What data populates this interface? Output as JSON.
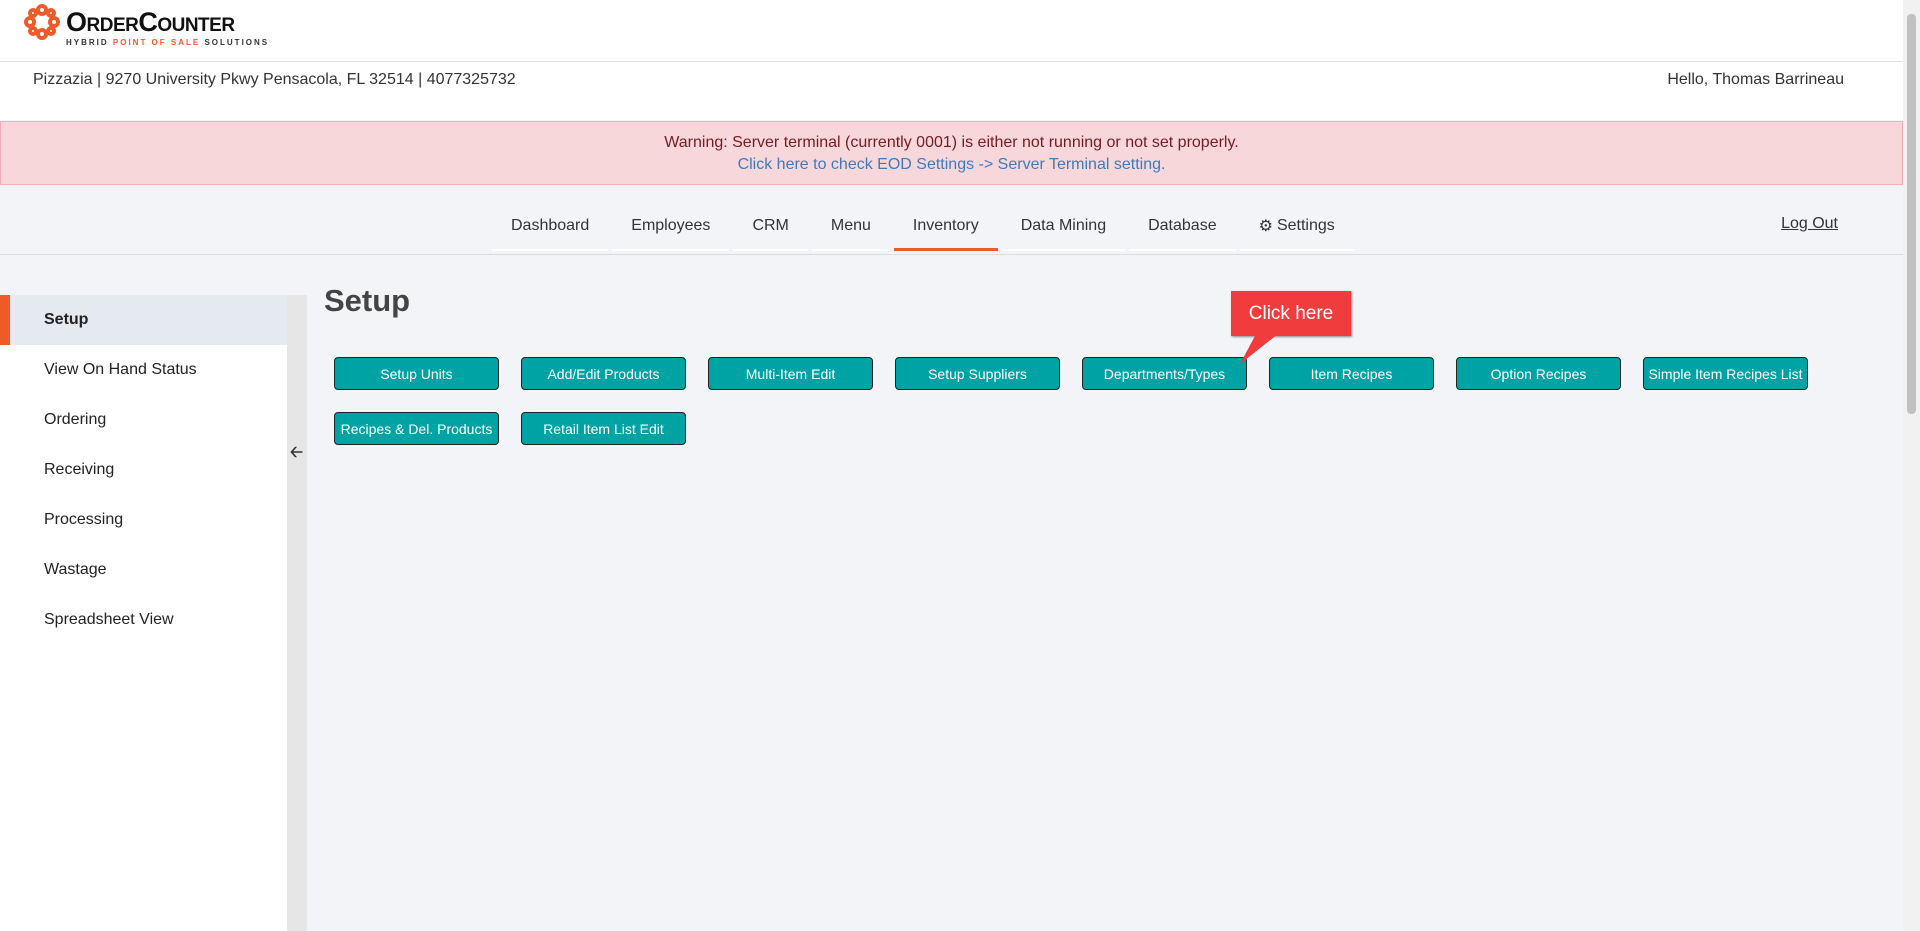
{
  "brand": {
    "name": "OrderCounter",
    "tagline_a": "HYBRID ",
    "tagline_b": "POINT OF SALE",
    "tagline_c": " SOLUTIONS",
    "accent": "#f05a28"
  },
  "header": {
    "store_info": "Pizzazia | 9270 University Pkwy Pensacola, FL 32514 | 4077325732",
    "greeting": "Hello, Thomas Barrineau"
  },
  "warning": {
    "text": "Warning: Server terminal (currently 0001) is either not running or not set properly.",
    "link": "Click here to check EOD Settings -> Server Terminal setting."
  },
  "nav": {
    "tabs": [
      {
        "label": "Dashboard"
      },
      {
        "label": "Employees"
      },
      {
        "label": "CRM"
      },
      {
        "label": "Menu"
      },
      {
        "label": "Inventory",
        "active": true
      },
      {
        "label": "Data Mining"
      },
      {
        "label": "Database"
      },
      {
        "label": "Settings",
        "icon": "gear-icon"
      }
    ],
    "logout": "Log Out"
  },
  "sidebar": {
    "items": [
      {
        "label": "Setup",
        "active": true
      },
      {
        "label": "View On Hand Status"
      },
      {
        "label": "Ordering"
      },
      {
        "label": "Receiving"
      },
      {
        "label": "Processing"
      },
      {
        "label": "Wastage"
      },
      {
        "label": "Spreadsheet View"
      }
    ],
    "collapse_icon": "arrow-left-icon"
  },
  "main": {
    "title": "Setup",
    "buttons": [
      "Setup Units",
      "Add/Edit Products",
      "Multi-Item Edit",
      "Setup Suppliers",
      "Departments/Types",
      "Item Recipes",
      "Option Recipes",
      "Simple Item Recipes List",
      "Recipes & Del. Products",
      "Retail Item List Edit"
    ],
    "button_color": "#00a3a3"
  },
  "callout": {
    "text": "Click here",
    "color": "#f03c3c"
  }
}
